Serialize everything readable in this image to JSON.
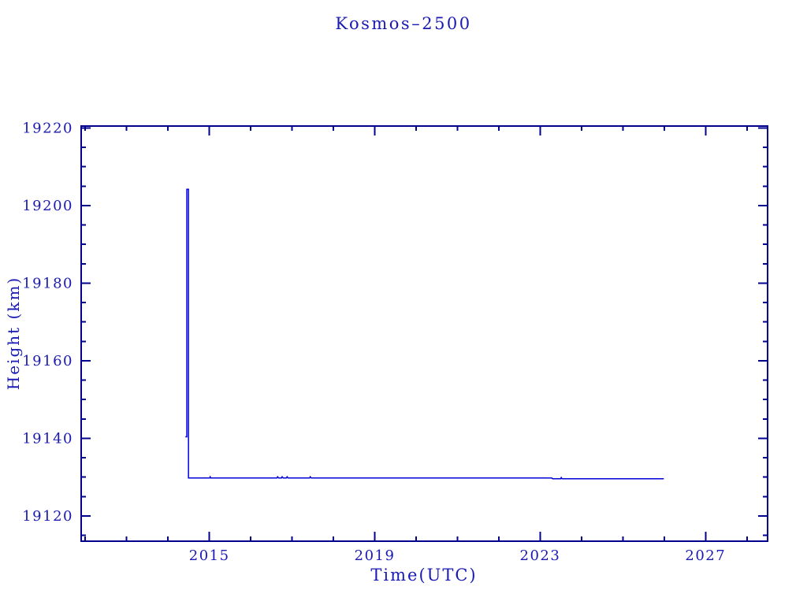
{
  "page": {
    "background": "#ffffff"
  },
  "chart_data": {
    "type": "line",
    "title": "Kosmos–2500",
    "xlabel": "Time(UTC)",
    "ylabel": "Height (km)",
    "xlim": [
      2011.9,
      2028.5
    ],
    "ylim": [
      19113.5,
      19220.5
    ],
    "x_major_ticks": [
      2015,
      2019,
      2023,
      2027
    ],
    "x_minor_tick_step": 1,
    "y_major_ticks": [
      19120,
      19140,
      19160,
      19180,
      19200,
      19220
    ],
    "y_minor_tick_step": 5,
    "grid": false,
    "legend_position": "none",
    "colors": {
      "frame": "#00008c",
      "line": "#0000d9",
      "text": "#1a1ab3"
    },
    "series": [
      {
        "name": "height_km",
        "points": [
          [
            2014.42,
            19140.4
          ],
          [
            2014.455,
            19140.4
          ],
          [
            2014.455,
            19204.2
          ],
          [
            2014.495,
            19204.2
          ],
          [
            2014.495,
            19129.8
          ],
          [
            2015.01,
            19129.8
          ],
          [
            2015.02,
            19130.1
          ],
          [
            2015.035,
            19129.8
          ],
          [
            2016.635,
            19129.8
          ],
          [
            2016.65,
            19130.1
          ],
          [
            2016.675,
            19129.8
          ],
          [
            2016.745,
            19129.8
          ],
          [
            2016.76,
            19130.1
          ],
          [
            2016.785,
            19129.8
          ],
          [
            2016.865,
            19129.8
          ],
          [
            2016.88,
            19130.1
          ],
          [
            2016.905,
            19129.8
          ],
          [
            2017.425,
            19129.8
          ],
          [
            2017.44,
            19130.1
          ],
          [
            2017.465,
            19129.8
          ],
          [
            2023.28,
            19129.8
          ],
          [
            2023.3,
            19129.6
          ],
          [
            2023.495,
            19129.6
          ],
          [
            2023.51,
            19129.9
          ],
          [
            2023.53,
            19129.6
          ],
          [
            2025.99,
            19129.6
          ]
        ]
      }
    ]
  }
}
